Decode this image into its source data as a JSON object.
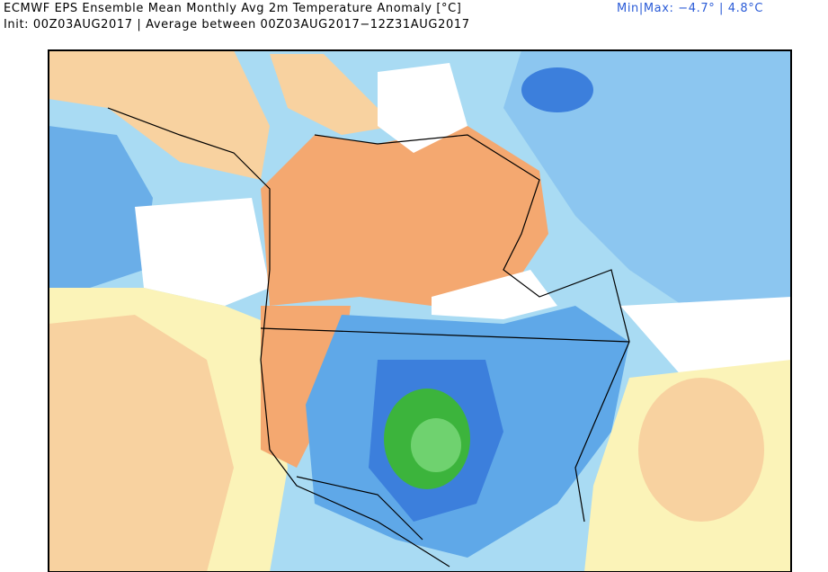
{
  "header": {
    "title": "ECMWF EPS Ensemble Mean Monthly Avg 2m Temperature Anomaly [°C]",
    "init": "Init: 00Z03AUG2017 | Average between 00Z03AUG2017−12Z31AUG2017",
    "minmax": "Min|Max: −4.7° | 4.8°C"
  }
}
